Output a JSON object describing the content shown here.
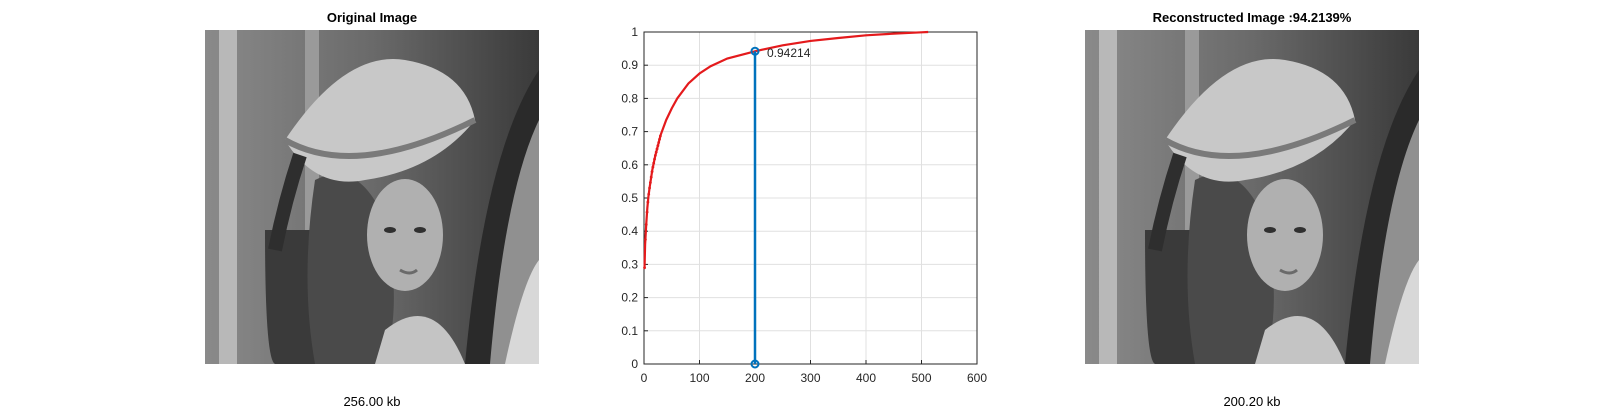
{
  "left_panel": {
    "title": "Original Image",
    "caption": "256.00 kb"
  },
  "right_panel": {
    "title": "Reconstructed Image :94.2139%",
    "caption": "200.20 kb"
  },
  "chart_data": {
    "type": "line",
    "title": "",
    "xlabel": "",
    "ylabel": "",
    "xlim": [
      0,
      600
    ],
    "ylim": [
      0,
      1
    ],
    "xticks": [
      0,
      100,
      200,
      300,
      400,
      500,
      600
    ],
    "yticks": [
      0,
      0.1,
      0.2,
      0.3,
      0.4,
      0.5,
      0.6,
      0.7,
      0.8,
      0.9,
      1
    ],
    "grid": true,
    "series": [
      {
        "style": "red dotted cumulative curve",
        "color": "#e41a1c",
        "x": [
          1,
          2,
          4,
          6,
          8,
          10,
          15,
          20,
          30,
          40,
          50,
          60,
          80,
          100,
          120,
          150,
          200,
          250,
          300,
          350,
          400,
          450,
          500,
          512
        ],
        "y": [
          0.29,
          0.36,
          0.42,
          0.47,
          0.505,
          0.53,
          0.585,
          0.625,
          0.69,
          0.735,
          0.77,
          0.8,
          0.845,
          0.875,
          0.897,
          0.92,
          0.942,
          0.96,
          0.973,
          0.982,
          0.99,
          0.995,
          0.999,
          1.0
        ]
      },
      {
        "style": "blue stem",
        "color": "#0072bd",
        "x": [
          200,
          200
        ],
        "y": [
          0,
          0.94214
        ]
      }
    ],
    "annotations": [
      {
        "text": "0.94214",
        "x": 200,
        "y": 0.94214
      }
    ]
  }
}
